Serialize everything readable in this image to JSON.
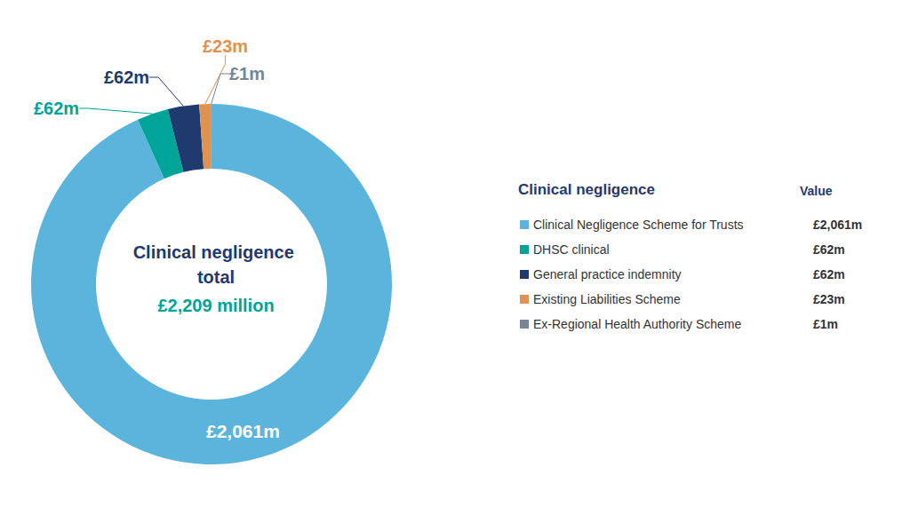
{
  "chart_data": {
    "type": "pie",
    "title": "Clinical negligence total",
    "subtitle": "£2,209 million",
    "legend_title": "Clinical negligence",
    "legend_value_header": "Value",
    "categories": [
      "Clinical Negligence Scheme for Trusts",
      "DHSC clinical",
      "General practice indemnity",
      "Existing Liabilities Scheme",
      "Ex-Regional Health Authority Scheme"
    ],
    "values": [
      2061,
      62,
      62,
      23,
      1
    ],
    "value_labels": [
      "£2,061m",
      "£62m",
      "£62m",
      "£23m",
      "£1m"
    ],
    "colors": [
      "#5ab4dc",
      "#00a499",
      "#1f3a6e",
      "#e0924f",
      "#768692"
    ],
    "data_labels": true,
    "legend": "right"
  }
}
